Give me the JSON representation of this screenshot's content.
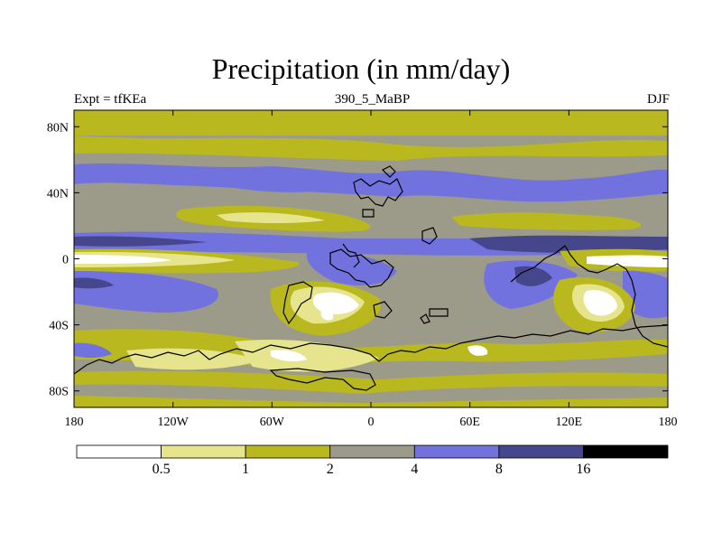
{
  "title": "Precipitation (in mm/day)",
  "left_label": "Expt = tfKEa",
  "center_label": "390_5_MaBP",
  "right_label": "DJF",
  "colors": {
    "white": "#ffffff",
    "pale_yellow": "#e6e48c",
    "olive": "#b9b81f",
    "gray": "#9c9a89",
    "blue": "#7272de",
    "dark_blue": "#46468c",
    "black": "#000000",
    "coast": "#000000"
  },
  "map": {
    "x_ticks": [
      "180",
      "120W",
      "60W",
      "0",
      "60E",
      "120E",
      "180"
    ],
    "y_ticks": [
      "80N",
      "40N",
      "0",
      "40S",
      "80S"
    ]
  },
  "colorbar": {
    "labels": [
      "0.5",
      "1",
      "2",
      "4",
      "8",
      "16"
    ]
  },
  "chart_data": {
    "type": "heatmap",
    "title": "Precipitation (in mm/day)",
    "subtitle": "390_5_MaBP",
    "xlabel": "",
    "ylabel": "",
    "xlim": [
      -180,
      180
    ],
    "ylim": [
      -90,
      90
    ],
    "x_tick_labels": [
      "180",
      "120W",
      "60W",
      "0",
      "60E",
      "120E",
      "180"
    ],
    "y_tick_labels": [
      "80N",
      "40N",
      "0",
      "40S",
      "80S"
    ],
    "levels": [
      0.5,
      1,
      2,
      4,
      8,
      16
    ],
    "units": "mm/day",
    "zonal_bands_approx": [
      {
        "lat_range": [
          80,
          90
        ],
        "value_range": [
          1,
          2
        ]
      },
      {
        "lat_range": [
          60,
          80
        ],
        "value_range": [
          2,
          4
        ]
      },
      {
        "lat_range": [
          35,
          55
        ],
        "value_range": [
          4,
          8
        ]
      },
      {
        "lat_range": [
          15,
          30
        ],
        "value_range": [
          1,
          2
        ]
      },
      {
        "lat_range": [
          5,
          12
        ],
        "value_range": [
          8,
          16
        ]
      },
      {
        "lat_range": [
          -3,
          3
        ],
        "value_range": [
          0,
          0.5
        ]
      },
      {
        "lat_range": [
          -30,
          -10
        ],
        "value_range": [
          4,
          8
        ]
      },
      {
        "lat_range": [
          -60,
          -45
        ],
        "value_range": [
          2,
          4
        ]
      },
      {
        "lat_range": [
          -75,
          -62
        ],
        "value_range": [
          0.5,
          1
        ]
      }
    ]
  }
}
